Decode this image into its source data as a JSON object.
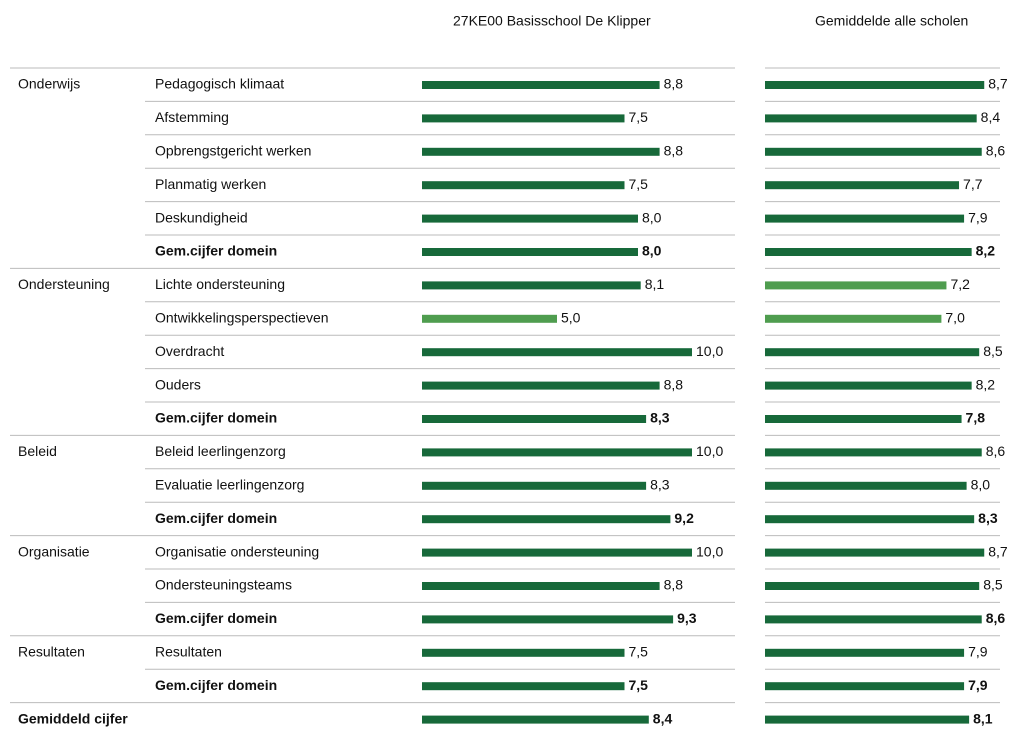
{
  "chart_data": {
    "type": "bar",
    "xlim": [
      0,
      10
    ],
    "series": [
      {
        "name": "27KE00 Basisschool De Klipper"
      },
      {
        "name": "Gemiddelde alle scholen"
      }
    ],
    "groups": [
      {
        "name": "Onderwijs",
        "rows": [
          {
            "label": "Pedagogisch klimaat",
            "values": [
              8.8,
              8.7
            ],
            "value_labels": [
              "8,8",
              "8,7"
            ],
            "colors": [
              "#17693a",
              "#17693a"
            ],
            "bold": false
          },
          {
            "label": "Afstemming",
            "values": [
              7.5,
              8.4
            ],
            "value_labels": [
              "7,5",
              "8,4"
            ],
            "colors": [
              "#17693a",
              "#17693a"
            ],
            "bold": false
          },
          {
            "label": "Opbrengstgericht werken",
            "values": [
              8.8,
              8.6
            ],
            "value_labels": [
              "8,8",
              "8,6"
            ],
            "colors": [
              "#17693a",
              "#17693a"
            ],
            "bold": false
          },
          {
            "label": "Planmatig werken",
            "values": [
              7.5,
              7.7
            ],
            "value_labels": [
              "7,5",
              "7,7"
            ],
            "colors": [
              "#17693a",
              "#17693a"
            ],
            "bold": false
          },
          {
            "label": "Deskundigheid",
            "values": [
              8.0,
              7.9
            ],
            "value_labels": [
              "8,0",
              "7,9"
            ],
            "colors": [
              "#17693a",
              "#17693a"
            ],
            "bold": false
          },
          {
            "label": "Gem.cijfer domein",
            "values": [
              8.0,
              8.2
            ],
            "value_labels": [
              "8,0",
              "8,2"
            ],
            "colors": [
              "#17693a",
              "#17693a"
            ],
            "bold": true
          }
        ]
      },
      {
        "name": "Ondersteuning",
        "rows": [
          {
            "label": "Lichte ondersteuning",
            "values": [
              8.1,
              7.2
            ],
            "value_labels": [
              "8,1",
              "7,2"
            ],
            "colors": [
              "#17693a",
              "#4f9d4f"
            ],
            "bold": false
          },
          {
            "label": "Ontwikkelingsperspectieven",
            "values": [
              5.0,
              7.0
            ],
            "value_labels": [
              "5,0",
              "7,0"
            ],
            "colors": [
              "#4f9d4f",
              "#4f9d4f"
            ],
            "bold": false
          },
          {
            "label": "Overdracht",
            "values": [
              10.0,
              8.5
            ],
            "value_labels": [
              "10,0",
              "8,5"
            ],
            "colors": [
              "#17693a",
              "#17693a"
            ],
            "bold": false
          },
          {
            "label": "Ouders",
            "values": [
              8.8,
              8.2
            ],
            "value_labels": [
              "8,8",
              "8,2"
            ],
            "colors": [
              "#17693a",
              "#17693a"
            ],
            "bold": false
          },
          {
            "label": "Gem.cijfer domein",
            "values": [
              8.3,
              7.8
            ],
            "value_labels": [
              "8,3",
              "7,8"
            ],
            "colors": [
              "#17693a",
              "#17693a"
            ],
            "bold": true
          }
        ]
      },
      {
        "name": "Beleid",
        "rows": [
          {
            "label": "Beleid leerlingenzorg",
            "values": [
              10.0,
              8.6
            ],
            "value_labels": [
              "10,0",
              "8,6"
            ],
            "colors": [
              "#17693a",
              "#17693a"
            ],
            "bold": false
          },
          {
            "label": "Evaluatie leerlingenzorg",
            "values": [
              8.3,
              8.0
            ],
            "value_labels": [
              "8,3",
              "8,0"
            ],
            "colors": [
              "#17693a",
              "#17693a"
            ],
            "bold": false
          },
          {
            "label": "Gem.cijfer domein",
            "values": [
              9.2,
              8.3
            ],
            "value_labels": [
              "9,2",
              "8,3"
            ],
            "colors": [
              "#17693a",
              "#17693a"
            ],
            "bold": true
          }
        ]
      },
      {
        "name": "Organisatie",
        "rows": [
          {
            "label": "Organisatie ondersteuning",
            "values": [
              10.0,
              8.7
            ],
            "value_labels": [
              "10,0",
              "8,7"
            ],
            "colors": [
              "#17693a",
              "#17693a"
            ],
            "bold": false
          },
          {
            "label": "Ondersteuningsteams",
            "values": [
              8.8,
              8.5
            ],
            "value_labels": [
              "8,8",
              "8,5"
            ],
            "colors": [
              "#17693a",
              "#17693a"
            ],
            "bold": false
          },
          {
            "label": "Gem.cijfer domein",
            "values": [
              9.3,
              8.6
            ],
            "value_labels": [
              "9,3",
              "8,6"
            ],
            "colors": [
              "#17693a",
              "#17693a"
            ],
            "bold": true
          }
        ]
      },
      {
        "name": "Resultaten",
        "rows": [
          {
            "label": "Resultaten",
            "values": [
              7.5,
              7.9
            ],
            "value_labels": [
              "7,5",
              "7,9"
            ],
            "colors": [
              "#17693a",
              "#17693a"
            ],
            "bold": false
          },
          {
            "label": "Gem.cijfer domein",
            "values": [
              7.5,
              7.9
            ],
            "value_labels": [
              "7,5",
              "7,9"
            ],
            "colors": [
              "#17693a",
              "#17693a"
            ],
            "bold": true
          }
        ]
      },
      {
        "name": "Gemiddeld cijfer",
        "bold": true,
        "rows": [
          {
            "label": null,
            "values": [
              8.4,
              8.1
            ],
            "value_labels": [
              "8,4",
              "8,1"
            ],
            "colors": [
              "#17693a",
              "#17693a"
            ],
            "bold": true
          }
        ]
      }
    ]
  }
}
